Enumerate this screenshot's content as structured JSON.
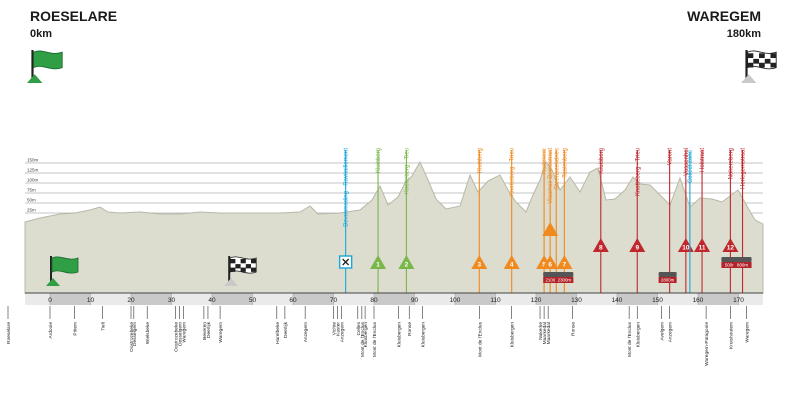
{
  "start": {
    "city": "ROESELARE",
    "km": "0km"
  },
  "finish": {
    "city": "WAREGEM",
    "km": "180km"
  },
  "altitude_labels": [
    "150m",
    "125m",
    "100m",
    "75m",
    "50m",
    "25m"
  ],
  "km_ticks": [
    "0",
    "10",
    "20",
    "30",
    "40",
    "50",
    "60",
    "70",
    "80",
    "90",
    "100",
    "110",
    "120",
    "130",
    "140",
    "150",
    "160",
    "170"
  ],
  "events": [
    {
      "name": "Bevoorrading - Ravitaillement",
      "km": 73,
      "color": "#19a6d8",
      "marker": "feed"
    },
    {
      "name": "Kluisberg",
      "km": 81,
      "color": "#7ab648",
      "marker": "1",
      "kind": "sprint"
    },
    {
      "name": "Knotteberg - Tieu",
      "km": 88,
      "color": "#7ab648",
      "marker": "2",
      "kind": "sprint"
    },
    {
      "name": "Kluisberg",
      "km": 106,
      "color": "#f08a1f",
      "marker": "3",
      "kind": "climb"
    },
    {
      "name": "Knotteberg - Trieu",
      "km": 114,
      "color": "#f08a1f",
      "marker": "4",
      "kind": "climb"
    },
    {
      "name": "Kortekeer",
      "km": 122,
      "color": "#f08a1f",
      "marker": "5",
      "kind": "climb"
    },
    {
      "name": "Vlaamse Bomestraat",
      "km": 123.5,
      "color": "#f08a1f",
      "marker": "6",
      "kind": "climb"
    },
    {
      "name": "Steenbeekdries",
      "km": 125,
      "color": "#f08a1f",
      "marker": "",
      "kind": "climb"
    },
    {
      "name": "Taaienberg",
      "km": 127,
      "color": "#f08a1f",
      "marker": "7",
      "kind": "climb"
    },
    {
      "name": "Kruisberg",
      "km": 136,
      "color": "#c0272d",
      "marker": "8",
      "kind": "climb"
    },
    {
      "name": "Knotteberg - Trieu",
      "km": 145,
      "color": "#c0272d",
      "marker": "9",
      "kind": "climb"
    },
    {
      "name": "Varent",
      "km": 153,
      "color": "#c0272d",
      "marker": "",
      "kind": "cobbles"
    },
    {
      "name": "Vossenhol",
      "km": 157,
      "color": "#c0272d",
      "marker": "10",
      "kind": "climb"
    },
    {
      "name": "Collect zone",
      "km": 158,
      "color": "#19a6d8",
      "marker": "",
      "kind": "zone"
    },
    {
      "name": "Holstraat",
      "km": 161,
      "color": "#c0272d",
      "marker": "11",
      "kind": "climb"
    },
    {
      "name": "Nokereberg",
      "km": 168,
      "color": "#c0272d",
      "marker": "12",
      "kind": "climb"
    },
    {
      "name": "Herlegemstraat",
      "km": 171,
      "color": "#c0272d",
      "marker": "",
      "kind": "cobbles"
    }
  ],
  "cobble_badges": [
    {
      "km": 124,
      "text": "2100m"
    },
    {
      "km": 127,
      "text": "2300m"
    },
    {
      "km": 152.5,
      "text": "2800m"
    },
    {
      "km": 168,
      "text": "500m"
    },
    {
      "km": 171,
      "text": "800m"
    }
  ],
  "finish_flags": [
    {
      "km": 0,
      "type": "green"
    },
    {
      "km": 44,
      "type": "checkered"
    }
  ],
  "places": [
    {
      "name": "Roeselare",
      "km": -10
    },
    {
      "name": "Ardooie",
      "km": 0
    },
    {
      "name": "Pittem",
      "km": 6
    },
    {
      "name": "Tielt",
      "km": 13
    },
    {
      "name": "Oostrozebeke",
      "km": 20
    },
    {
      "name": "Desselgem",
      "km": 20.7
    },
    {
      "name": "Wielsbeke",
      "km": 24
    },
    {
      "name": "Oostrozebeke",
      "km": 31
    },
    {
      "name": "Desselgem",
      "km": 32
    },
    {
      "name": "Waregem",
      "km": 33
    },
    {
      "name": "Beveren",
      "km": 38
    },
    {
      "name": "Deerlijk",
      "km": 39
    },
    {
      "name": "Waregem",
      "km": 42
    },
    {
      "name": "Harelbeke",
      "km": 56
    },
    {
      "name": "Deerlijk",
      "km": 58
    },
    {
      "name": "Anzegem",
      "km": 63
    },
    {
      "name": "Vichte",
      "km": 70
    },
    {
      "name": "Kaster",
      "km": 71
    },
    {
      "name": "Anzegem",
      "km": 72
    },
    {
      "name": "Celles",
      "km": 76
    },
    {
      "name": "Mont de l'Enclus",
      "km": 77
    },
    {
      "name": "Kluisbergen",
      "km": 77.8
    },
    {
      "name": "Mont de l'Enclus",
      "km": 80
    },
    {
      "name": "Kluisbergen",
      "km": 86
    },
    {
      "name": "Ronse",
      "km": 88.7
    },
    {
      "name": "Kluisbergen",
      "km": 92
    },
    {
      "name": "Mont de l'Enclus",
      "km": 106
    },
    {
      "name": "Kluisbergen",
      "km": 114
    },
    {
      "name": "Nukerke",
      "km": 121
    },
    {
      "name": "Maarkedal",
      "km": 122
    },
    {
      "name": "Maarkedal",
      "km": 123
    },
    {
      "name": "Ronse",
      "km": 129
    },
    {
      "name": "Mont de l'Enclus",
      "km": 143
    },
    {
      "name": "Kluisbergen",
      "km": 145
    },
    {
      "name": "Avelgem",
      "km": 151
    },
    {
      "name": "Anzegem",
      "km": 153
    },
    {
      "name": "Waregem-Patagonie",
      "km": 162
    },
    {
      "name": "Kruishoutem",
      "km": 168
    },
    {
      "name": "Waregem",
      "km": 172
    }
  ]
}
